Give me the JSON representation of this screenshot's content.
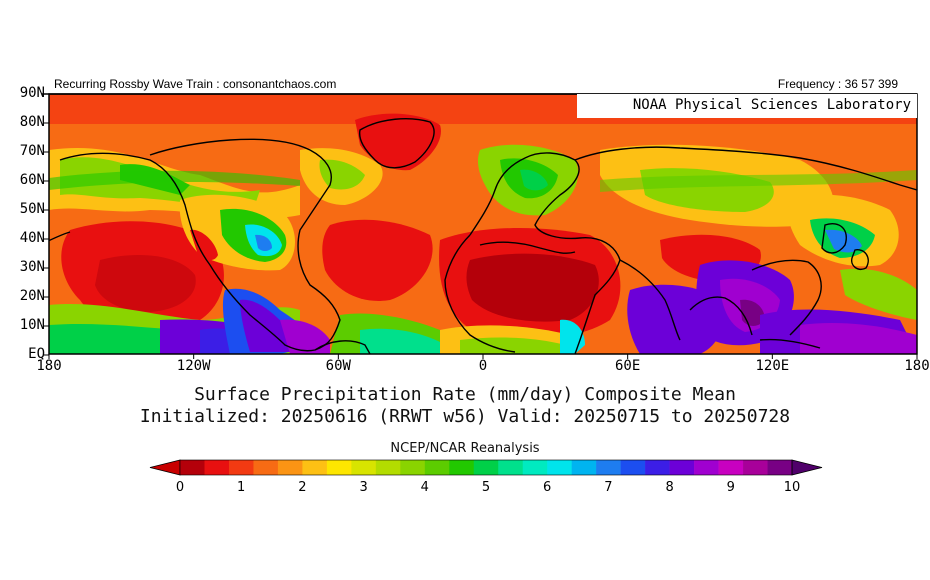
{
  "header": {
    "left": "Recurring Rossby Wave Train : consonantchaos.com",
    "right": "Frequency : 36 57 399"
  },
  "badge": "NOAA Physical Sciences Laboratory",
  "lat_labels": [
    "90N",
    "80N",
    "70N",
    "60N",
    "50N",
    "40N",
    "30N",
    "20N",
    "10N",
    "EQ"
  ],
  "lon_labels": [
    "180",
    "120W",
    "60W",
    "0",
    "60E",
    "120E",
    "180"
  ],
  "title_line1": "Surface Precipitation Rate (mm/day) Composite Mean",
  "title_line2": "Initialized: 20250616 (RRWT w56) Valid: 20250715 to 20250728",
  "source": "NCEP/NCAR Reanalysis",
  "colorbar": {
    "tick_labels": [
      "0",
      "1",
      "2",
      "3",
      "4",
      "5",
      "6",
      "7",
      "8",
      "9",
      "10"
    ],
    "colors": [
      "#b4000a",
      "#e81010",
      "#f23a12",
      "#f76b14",
      "#fb9414",
      "#fdc014",
      "#fde600",
      "#d8e400",
      "#b3dc00",
      "#8ad400",
      "#5ccc00",
      "#22c800",
      "#00d048",
      "#00e08c",
      "#00eac0",
      "#00e4ec",
      "#00b4f0",
      "#1e7df0",
      "#1c4ef0",
      "#3c1ee6",
      "#6c00d8",
      "#a000d0",
      "#c800c0",
      "#a8009a",
      "#780084"
    ],
    "under_color": "#c80000",
    "over_color": "#50006a"
  }
}
